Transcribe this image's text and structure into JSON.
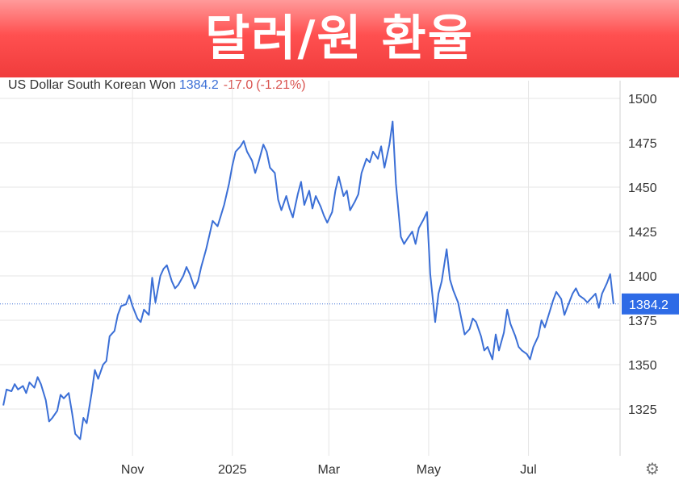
{
  "banner": {
    "title": "달러/원 환율"
  },
  "header": {
    "name": "US Dollar South Korean Won",
    "price": "1384.2",
    "change": "-17.0",
    "change_pct": "(-1.21%)"
  },
  "colors": {
    "line": "#3b6fd6",
    "change_negative": "#d9534f",
    "grid": "#e6e6e6",
    "price_label_bg": "#2e6be6"
  },
  "icons": {
    "settings": "gear-icon"
  },
  "chart_data": {
    "type": "line",
    "title": "US Dollar South Korean Won",
    "y_ticks": [
      1325,
      1350,
      1375,
      1400,
      1425,
      1450,
      1475,
      1500
    ],
    "y_tick_labels": [
      "1325",
      "1350",
      "1375",
      "1400",
      "1425",
      "1450",
      "1475",
      "1500"
    ],
    "ylim": [
      1300,
      1505
    ],
    "x_ticks": [
      {
        "label": "Nov",
        "x": "2024-11-01"
      },
      {
        "label": "2025",
        "x": "2025-01-01"
      },
      {
        "label": "Mar",
        "x": "2025-03-01"
      },
      {
        "label": "May",
        "x": "2025-05-01"
      },
      {
        "label": "Jul",
        "x": "2025-07-01"
      }
    ],
    "xlim": [
      "2024-08-12",
      "2025-08-26"
    ],
    "grid": true,
    "last_value": 1384.2,
    "last_value_label": "1384.2",
    "series": [
      {
        "points": [
          [
            "2024-08-14",
            1327
          ],
          [
            "2024-08-16",
            1336
          ],
          [
            "2024-08-19",
            1335
          ],
          [
            "2024-08-21",
            1339
          ],
          [
            "2024-08-23",
            1336
          ],
          [
            "2024-08-26",
            1338
          ],
          [
            "2024-08-28",
            1334
          ],
          [
            "2024-08-30",
            1340
          ],
          [
            "2024-09-02",
            1337
          ],
          [
            "2024-09-04",
            1343
          ],
          [
            "2024-09-06",
            1339
          ],
          [
            "2024-09-09",
            1330
          ],
          [
            "2024-09-11",
            1318
          ],
          [
            "2024-09-13",
            1320
          ],
          [
            "2024-09-16",
            1324
          ],
          [
            "2024-09-18",
            1333
          ],
          [
            "2024-09-20",
            1331
          ],
          [
            "2024-09-23",
            1334
          ],
          [
            "2024-09-25",
            1323
          ],
          [
            "2024-09-27",
            1311
          ],
          [
            "2024-09-30",
            1308
          ],
          [
            "2024-10-02",
            1320
          ],
          [
            "2024-10-04",
            1317
          ],
          [
            "2024-10-07",
            1334
          ],
          [
            "2024-10-09",
            1347
          ],
          [
            "2024-10-11",
            1342
          ],
          [
            "2024-10-14",
            1350
          ],
          [
            "2024-10-16",
            1352
          ],
          [
            "2024-10-18",
            1366
          ],
          [
            "2024-10-21",
            1369
          ],
          [
            "2024-10-23",
            1378
          ],
          [
            "2024-10-25",
            1383
          ],
          [
            "2024-10-28",
            1384
          ],
          [
            "2024-10-30",
            1389
          ],
          [
            "2024-11-01",
            1383
          ],
          [
            "2024-11-04",
            1376
          ],
          [
            "2024-11-06",
            1374
          ],
          [
            "2024-11-08",
            1381
          ],
          [
            "2024-11-11",
            1378
          ],
          [
            "2024-11-13",
            1399
          ],
          [
            "2024-11-15",
            1385
          ],
          [
            "2024-11-18",
            1400
          ],
          [
            "2024-11-20",
            1404
          ],
          [
            "2024-11-22",
            1406
          ],
          [
            "2024-11-25",
            1397
          ],
          [
            "2024-11-27",
            1393
          ],
          [
            "2024-11-29",
            1395
          ],
          [
            "2024-12-02",
            1400
          ],
          [
            "2024-12-04",
            1405
          ],
          [
            "2024-12-06",
            1401
          ],
          [
            "2024-12-09",
            1393
          ],
          [
            "2024-12-11",
            1397
          ],
          [
            "2024-12-13",
            1405
          ],
          [
            "2024-12-16",
            1415
          ],
          [
            "2024-12-18",
            1423
          ],
          [
            "2024-12-20",
            1431
          ],
          [
            "2024-12-23",
            1428
          ],
          [
            "2024-12-25",
            1434
          ],
          [
            "2024-12-27",
            1440
          ],
          [
            "2024-12-30",
            1452
          ],
          [
            "2025-01-01",
            1462
          ],
          [
            "2025-01-03",
            1470
          ],
          [
            "2025-01-06",
            1473
          ],
          [
            "2025-01-08",
            1476
          ],
          [
            "2025-01-10",
            1470
          ],
          [
            "2025-01-13",
            1465
          ],
          [
            "2025-01-15",
            1458
          ],
          [
            "2025-01-17",
            1464
          ],
          [
            "2025-01-20",
            1474
          ],
          [
            "2025-01-22",
            1470
          ],
          [
            "2025-01-24",
            1461
          ],
          [
            "2025-01-27",
            1458
          ],
          [
            "2025-01-29",
            1443
          ],
          [
            "2025-01-31",
            1437
          ],
          [
            "2025-02-03",
            1445
          ],
          [
            "2025-02-05",
            1438
          ],
          [
            "2025-02-07",
            1433
          ],
          [
            "2025-02-10",
            1446
          ],
          [
            "2025-02-12",
            1453
          ],
          [
            "2025-02-14",
            1440
          ],
          [
            "2025-02-17",
            1448
          ],
          [
            "2025-02-19",
            1438
          ],
          [
            "2025-02-21",
            1445
          ],
          [
            "2025-02-24",
            1439
          ],
          [
            "2025-02-26",
            1434
          ],
          [
            "2025-02-28",
            1430
          ],
          [
            "2025-03-03",
            1436
          ],
          [
            "2025-03-05",
            1448
          ],
          [
            "2025-03-07",
            1456
          ],
          [
            "2025-03-10",
            1445
          ],
          [
            "2025-03-12",
            1448
          ],
          [
            "2025-03-14",
            1437
          ],
          [
            "2025-03-17",
            1442
          ],
          [
            "2025-03-19",
            1446
          ],
          [
            "2025-03-21",
            1458
          ],
          [
            "2025-03-24",
            1466
          ],
          [
            "2025-03-26",
            1464
          ],
          [
            "2025-03-28",
            1470
          ],
          [
            "2025-03-31",
            1466
          ],
          [
            "2025-04-02",
            1473
          ],
          [
            "2025-04-04",
            1461
          ],
          [
            "2025-04-07",
            1474
          ],
          [
            "2025-04-09",
            1487
          ],
          [
            "2025-04-11",
            1452
          ],
          [
            "2025-04-14",
            1422
          ],
          [
            "2025-04-16",
            1418
          ],
          [
            "2025-04-18",
            1421
          ],
          [
            "2025-04-21",
            1425
          ],
          [
            "2025-04-23",
            1418
          ],
          [
            "2025-04-25",
            1427
          ],
          [
            "2025-04-28",
            1432
          ],
          [
            "2025-04-30",
            1436
          ],
          [
            "2025-05-02",
            1401
          ],
          [
            "2025-05-05",
            1374
          ],
          [
            "2025-05-07",
            1390
          ],
          [
            "2025-05-09",
            1397
          ],
          [
            "2025-05-12",
            1415
          ],
          [
            "2025-05-14",
            1398
          ],
          [
            "2025-05-16",
            1392
          ],
          [
            "2025-05-19",
            1385
          ],
          [
            "2025-05-21",
            1376
          ],
          [
            "2025-05-23",
            1367
          ],
          [
            "2025-05-26",
            1370
          ],
          [
            "2025-05-28",
            1376
          ],
          [
            "2025-05-30",
            1374
          ],
          [
            "2025-06-02",
            1366
          ],
          [
            "2025-06-04",
            1358
          ],
          [
            "2025-06-06",
            1360
          ],
          [
            "2025-06-09",
            1353
          ],
          [
            "2025-06-11",
            1367
          ],
          [
            "2025-06-13",
            1358
          ],
          [
            "2025-06-16",
            1368
          ],
          [
            "2025-06-18",
            1381
          ],
          [
            "2025-06-20",
            1373
          ],
          [
            "2025-06-23",
            1366
          ],
          [
            "2025-06-25",
            1360
          ],
          [
            "2025-06-27",
            1358
          ],
          [
            "2025-06-30",
            1356
          ],
          [
            "2025-07-02",
            1353
          ],
          [
            "2025-07-04",
            1360
          ],
          [
            "2025-07-07",
            1366
          ],
          [
            "2025-07-09",
            1375
          ],
          [
            "2025-07-11",
            1371
          ],
          [
            "2025-07-14",
            1380
          ],
          [
            "2025-07-16",
            1386
          ],
          [
            "2025-07-18",
            1391
          ],
          [
            "2025-07-21",
            1387
          ],
          [
            "2025-07-23",
            1378
          ],
          [
            "2025-07-25",
            1383
          ],
          [
            "2025-07-28",
            1390
          ],
          [
            "2025-07-30",
            1393
          ],
          [
            "2025-08-01",
            1389
          ],
          [
            "2025-08-04",
            1387
          ],
          [
            "2025-08-06",
            1385
          ],
          [
            "2025-08-08",
            1387
          ],
          [
            "2025-08-11",
            1390
          ],
          [
            "2025-08-13",
            1382
          ],
          [
            "2025-08-15",
            1390
          ],
          [
            "2025-08-18",
            1396
          ],
          [
            "2025-08-20",
            1401
          ],
          [
            "2025-08-22",
            1384.2
          ]
        ]
      }
    ]
  }
}
